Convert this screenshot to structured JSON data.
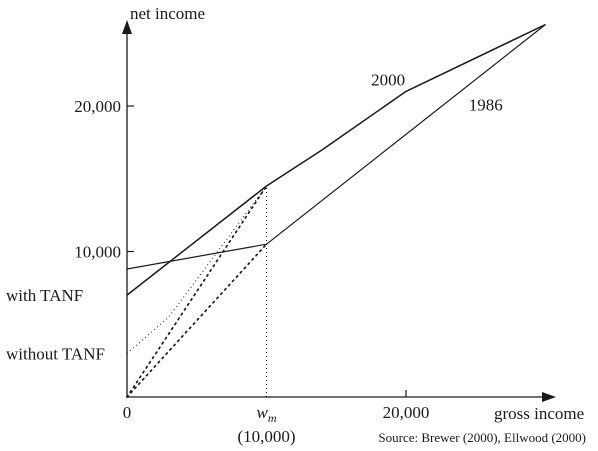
{
  "chart_data": {
    "type": "line",
    "xlabel": "gross income",
    "ylabel": "net income",
    "xlim": [
      0,
      30000
    ],
    "ylim": [
      0,
      27000
    ],
    "x_ticks": [
      {
        "value": 0,
        "label": "0"
      },
      {
        "value": 10000,
        "label": "w_m",
        "sub": "m",
        "extra": "(10,000)"
      },
      {
        "value": 20000,
        "label": "20,000"
      }
    ],
    "y_ticks": [
      {
        "value": 10000,
        "label": "10,000"
      },
      {
        "value": 20000,
        "label": "20,000"
      }
    ],
    "y_markers": [
      {
        "value": 7000,
        "label": "with TANF"
      },
      {
        "value": 3000,
        "label": "without TANF"
      }
    ],
    "series": [
      {
        "name": "2000",
        "style": "solid",
        "width": 1.5,
        "points": [
          [
            0,
            7000
          ],
          [
            10000,
            14500
          ],
          [
            14000,
            17000
          ],
          [
            20000,
            21000
          ],
          [
            30000,
            25600
          ]
        ]
      },
      {
        "name": "1986",
        "style": "solid",
        "width": 1.2,
        "points": [
          [
            0,
            8800
          ],
          [
            10000,
            10500
          ],
          [
            30000,
            25600
          ]
        ]
      },
      {
        "name": "",
        "style": "dotted",
        "width": 1.0,
        "points": [
          [
            0,
            3000
          ],
          [
            3000,
            5500
          ],
          [
            10000,
            14500
          ]
        ]
      },
      {
        "name": "",
        "style": "dotted-heavy",
        "width": 1.7,
        "points": [
          [
            0,
            0
          ],
          [
            10000,
            14500
          ]
        ]
      },
      {
        "name": "",
        "style": "dotted-heavy",
        "width": 1.7,
        "points": [
          [
            0,
            0
          ],
          [
            10000,
            10500
          ]
        ]
      },
      {
        "name": "",
        "style": "dotted",
        "width": 1.0,
        "points": [
          [
            10000,
            0
          ],
          [
            10000,
            14500
          ]
        ]
      }
    ],
    "annotations": [
      {
        "text": "2000",
        "x": 17500,
        "y": 21400
      },
      {
        "text": "1986",
        "x": 24500,
        "y": 19700
      }
    ],
    "source": "Source: Brewer (2000), Ellwood (2000)"
  }
}
